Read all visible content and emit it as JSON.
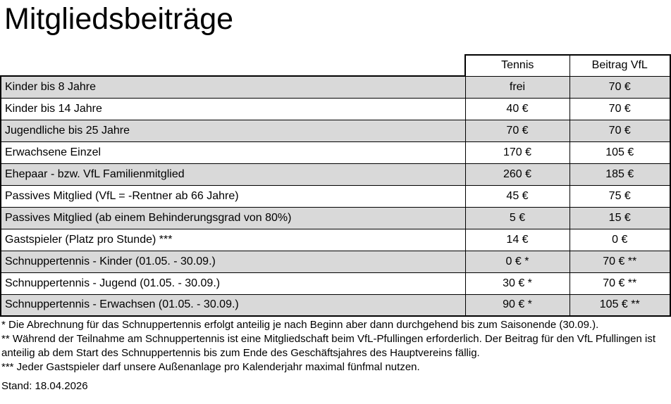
{
  "page": {
    "title": "Mitgliedsbeiträge"
  },
  "table": {
    "columns": [
      "",
      "Tennis",
      "Beitrag VfL"
    ],
    "rows": [
      {
        "label": "Kinder bis 8 Jahre",
        "tennis": "frei",
        "vfl": "70 €"
      },
      {
        "label": "Kinder bis 14 Jahre",
        "tennis": "40 €",
        "vfl": "70 €"
      },
      {
        "label": "Jugendliche bis 25 Jahre",
        "tennis": "70 €",
        "vfl": "70 €"
      },
      {
        "label": "Erwachsene Einzel",
        "tennis": "170 €",
        "vfl": "105 €"
      },
      {
        "label": "Ehepaar - bzw. VfL Familienmitglied",
        "tennis": "260 €",
        "vfl": "185 €"
      },
      {
        "label": "Passives Mitglied (VfL = -Rentner ab 66 Jahre)",
        "tennis": "45 €",
        "vfl": "75 €"
      },
      {
        "label": "Passives Mitglied (ab einem Behinderungsgrad von 80%)",
        "tennis": "5 €",
        "vfl": "15 €"
      },
      {
        "label": "Gastspieler (Platz pro Stunde) ***",
        "tennis": "14 €",
        "vfl": "0 €"
      },
      {
        "label": "Schnuppertennis - Kinder (01.05. - 30.09.)",
        "tennis": "0 € *",
        "vfl": "70 € **"
      },
      {
        "label": "Schnuppertennis - Jugend (01.05. - 30.09.)",
        "tennis": "30 € *",
        "vfl": "70 € **"
      },
      {
        "label": "Schnuppertennis - Erwachsen (01.05. - 30.09.)",
        "tennis": "90 € *",
        "vfl": "105 € **"
      }
    ]
  },
  "footnotes": [
    "* Die Abrechnung für das Schnuppertennis erfolgt anteilig je nach Beginn aber dann durchgehend bis zum Saisonende (30.09.).",
    "** Während der Teilnahme am Schnuppertennis ist eine Mitgliedschaft beim VfL-Pfullingen erforderlich. Der Beitrag für den VfL Pfullingen ist anteilig ab dem Start des Schnuppertennis bis zum Ende des Geschäftsjahres des Hauptvereins fällig.",
    "*** Jeder Gastspieler darf unsere Außenanlage pro Kalenderjahr maximal fünfmal nutzen."
  ],
  "stand": "Stand: 18.04.2026",
  "colors": {
    "background": "#ffffff",
    "row_shade": "#d9d9d9",
    "border": "#000000",
    "text": "#000000"
  }
}
